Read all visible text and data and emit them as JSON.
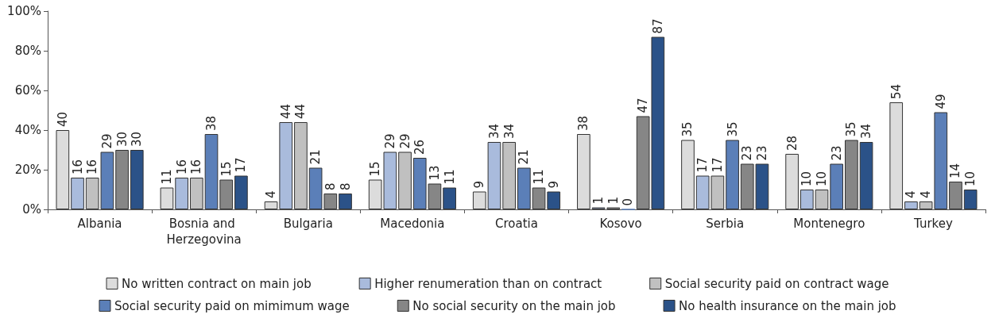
{
  "chart_data": {
    "type": "bar",
    "categories": [
      "Albania",
      "Bosnia and Herzegovina",
      "Bulgaria",
      "Macedonia",
      "Croatia",
      "Kosovo",
      "Serbia",
      "Montenegro",
      "Turkey"
    ],
    "series": [
      {
        "name": "No written contract on main job",
        "color": "#dcdcdc",
        "values": [
          40,
          11,
          4,
          15,
          9,
          38,
          35,
          28,
          54
        ]
      },
      {
        "name": "Higher renumeration than on contract",
        "color": "#a9bbdc",
        "values": [
          16,
          16,
          44,
          29,
          34,
          1,
          17,
          10,
          4
        ]
      },
      {
        "name": "Social security paid on contract wage",
        "color": "#c0c0c0",
        "values": [
          16,
          16,
          44,
          29,
          34,
          1,
          17,
          10,
          4
        ]
      },
      {
        "name": "Social security paid on mimimum wage",
        "color": "#5b7fb8",
        "values": [
          29,
          38,
          21,
          26,
          21,
          0,
          35,
          23,
          49
        ]
      },
      {
        "name": "No social security on the main job",
        "color": "#868686",
        "values": [
          30,
          15,
          8,
          13,
          11,
          47,
          23,
          35,
          14
        ]
      },
      {
        "name": "No health insurance on the main job",
        "color": "#2b5288",
        "values": [
          30,
          17,
          8,
          11,
          9,
          87,
          23,
          34,
          10
        ]
      }
    ],
    "ylim": [
      0,
      100
    ],
    "yticks": [
      {
        "value": 0,
        "label": "0%"
      },
      {
        "value": 20,
        "label": "20%"
      },
      {
        "value": 40,
        "label": "40%"
      },
      {
        "value": 60,
        "label": "60%"
      },
      {
        "value": 80,
        "label": "80%"
      },
      {
        "value": 100,
        "label": "100%"
      }
    ],
    "data_labels": true,
    "grid": false,
    "legend": "bottom"
  }
}
